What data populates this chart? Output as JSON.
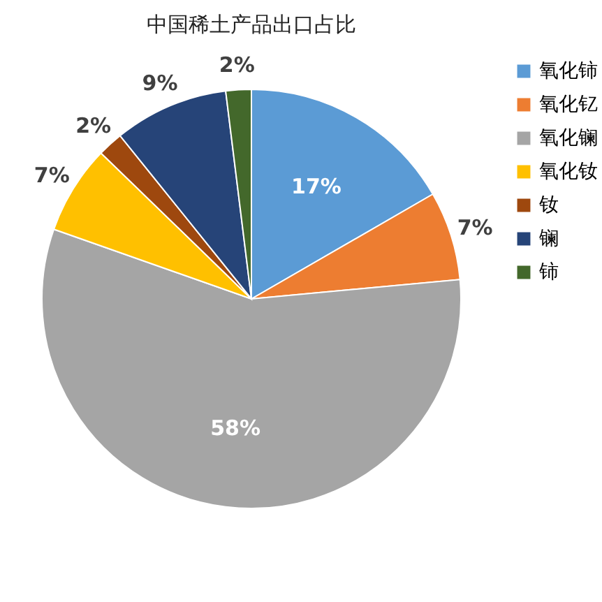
{
  "chart_data": {
    "type": "pie",
    "title": "中国稀土产品出口占比",
    "categories": [
      "氧化铈",
      "氧化钇",
      "氧化镧",
      "氧化钕",
      "钕",
      "镧",
      "铈"
    ],
    "values": [
      17,
      7,
      58,
      7,
      2,
      9,
      2
    ],
    "value_labels": [
      "17%",
      "7%",
      "58%",
      "7%",
      "2%",
      "9%",
      "2%"
    ],
    "colors": [
      "#5b9bd5",
      "#ed7d31",
      "#a5a5a5",
      "#ffc000",
      "#9e480e",
      "#264478",
      "#43682b"
    ],
    "legend": "right"
  }
}
